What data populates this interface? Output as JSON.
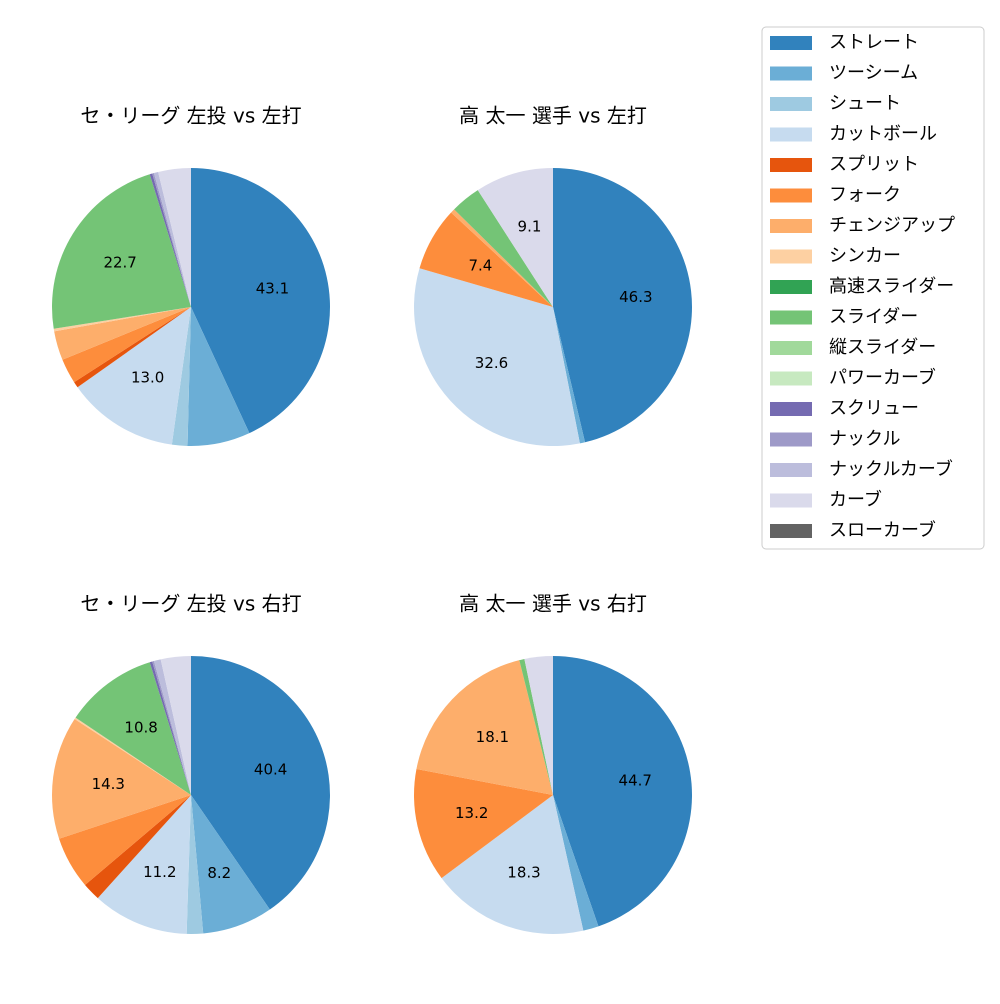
{
  "legend": {
    "categories": [
      "ストレート",
      "ツーシーム",
      "シュート",
      "カットボール",
      "スプリット",
      "フォーク",
      "チェンジアップ",
      "シンカー",
      "高速スライダー",
      "スライダー",
      "縦スライダー",
      "パワーカーブ",
      "スクリュー",
      "ナックル",
      "ナックルカーブ",
      "カーブ",
      "スローカーブ"
    ],
    "colors": [
      "#3182bd",
      "#6baed6",
      "#9ecae1",
      "#c6dbef",
      "#e6550d",
      "#fd8d3c",
      "#fdae6b",
      "#fdd0a2",
      "#31a354",
      "#74c476",
      "#a1d99b",
      "#c7e9c0",
      "#756bb1",
      "#9e9ac8",
      "#bcbddc",
      "#dadaeb",
      "#636363"
    ]
  },
  "chart_data": [
    {
      "type": "pie",
      "title": "セ・リーグ 左投 vs 左打",
      "values": [
        43.1,
        7.3,
        1.8,
        13.0,
        0.7,
        2.9,
        3.4,
        0.3,
        0,
        22.7,
        0,
        0,
        0.3,
        0.2,
        0.5,
        3.8,
        0
      ],
      "value_labels": [
        "43.1",
        null,
        null,
        "13.0",
        null,
        null,
        null,
        null,
        null,
        "22.7",
        null,
        null,
        null,
        null,
        null,
        null,
        null
      ]
    },
    {
      "type": "pie",
      "title": "高 太一 選手 vs 左打",
      "values": [
        46.3,
        0.6,
        0,
        32.6,
        0,
        7.4,
        0.5,
        0,
        0,
        3.5,
        0,
        0,
        0,
        0,
        0,
        9.1,
        0
      ],
      "value_labels": [
        "46.3",
        null,
        null,
        "32.6",
        null,
        "7.4",
        null,
        null,
        null,
        null,
        null,
        null,
        null,
        null,
        null,
        "9.1",
        null
      ]
    },
    {
      "type": "pie",
      "title": "セ・リーグ 左投 vs 右打",
      "values": [
        40.4,
        8.2,
        1.9,
        11.2,
        2.1,
        6.1,
        14.3,
        0.2,
        0,
        10.8,
        0,
        0,
        0.3,
        0.2,
        0.8,
        3.5,
        0
      ],
      "value_labels": [
        "40.4",
        "8.2",
        null,
        "11.2",
        null,
        null,
        "14.3",
        null,
        null,
        "10.8",
        null,
        null,
        null,
        null,
        null,
        null,
        null
      ]
    },
    {
      "type": "pie",
      "title": "高 太一 選手 vs 右打",
      "values": [
        44.7,
        1.8,
        0,
        18.3,
        0,
        13.2,
        18.1,
        0,
        0,
        0.6,
        0,
        0,
        0,
        0,
        0,
        3.3,
        0
      ],
      "value_labels": [
        "44.7",
        null,
        null,
        "18.3",
        null,
        "13.2",
        "18.1",
        null,
        null,
        null,
        null,
        null,
        null,
        null,
        null,
        null,
        null
      ]
    }
  ]
}
